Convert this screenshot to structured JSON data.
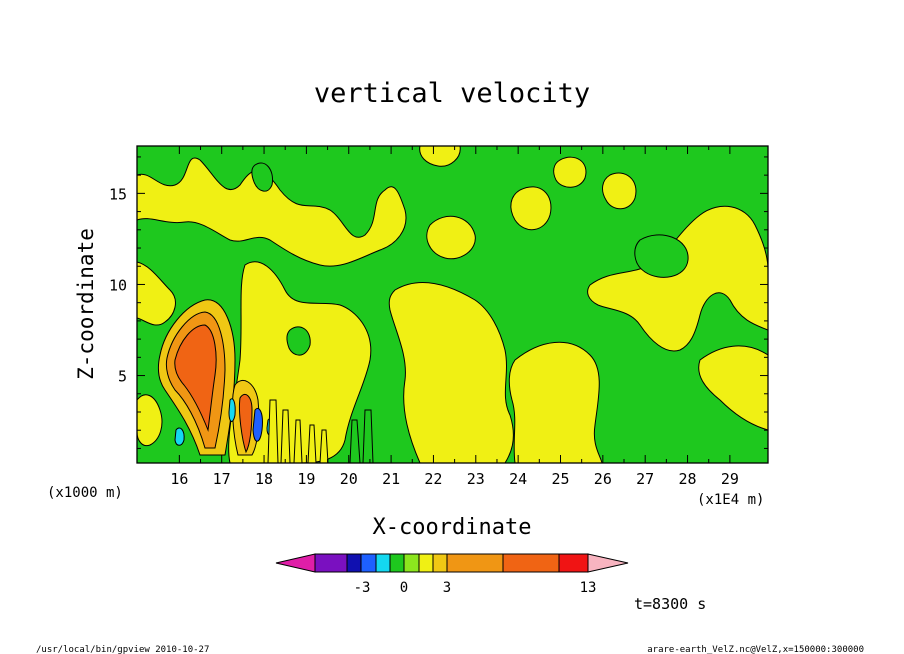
{
  "chart_data": {
    "type": "heatmap",
    "title": "vertical velocity",
    "xlabel": "X-coordinate",
    "ylabel": "Z-coordinate",
    "x_unit_left": "(x1000 m)",
    "x_unit_right": "(x1E4 m)",
    "x_ticks": [
      "16",
      "17",
      "18",
      "19",
      "20",
      "21",
      "22",
      "23",
      "24",
      "25",
      "26",
      "27",
      "28",
      "29"
    ],
    "y_ticks": [
      "5",
      "10",
      "15"
    ],
    "xlim": [
      15.0,
      29.9
    ],
    "ylim": [
      0.2,
      17.6
    ],
    "time_label": "t=8300 s",
    "colorbar": {
      "labels": [
        "-3",
        "0",
        "3",
        "13"
      ],
      "colors": [
        "#e01ea8",
        "#7a10c0",
        "#1010b0",
        "#1e60ff",
        "#14d8f0",
        "#1ec81e",
        "#8ce61e",
        "#f0f014",
        "#f0c814",
        "#f09614",
        "#f06414",
        "#f01414",
        "#f07878",
        "#f8b4c0"
      ]
    },
    "field_colors": {
      "negative_weak": "#1ec81e",
      "positive_weak": "#f0f014",
      "moderate": "#f0c814",
      "strong": "#f09614",
      "stronger": "#f06414",
      "strongest_negative": "#14d8f0",
      "deep_negative": "#1e60ff"
    }
  },
  "footer": {
    "left": "/usr/local/bin/gpview   2010-10-27",
    "right": "arare-earth_VelZ.nc@VelZ,x=150000:300000"
  }
}
